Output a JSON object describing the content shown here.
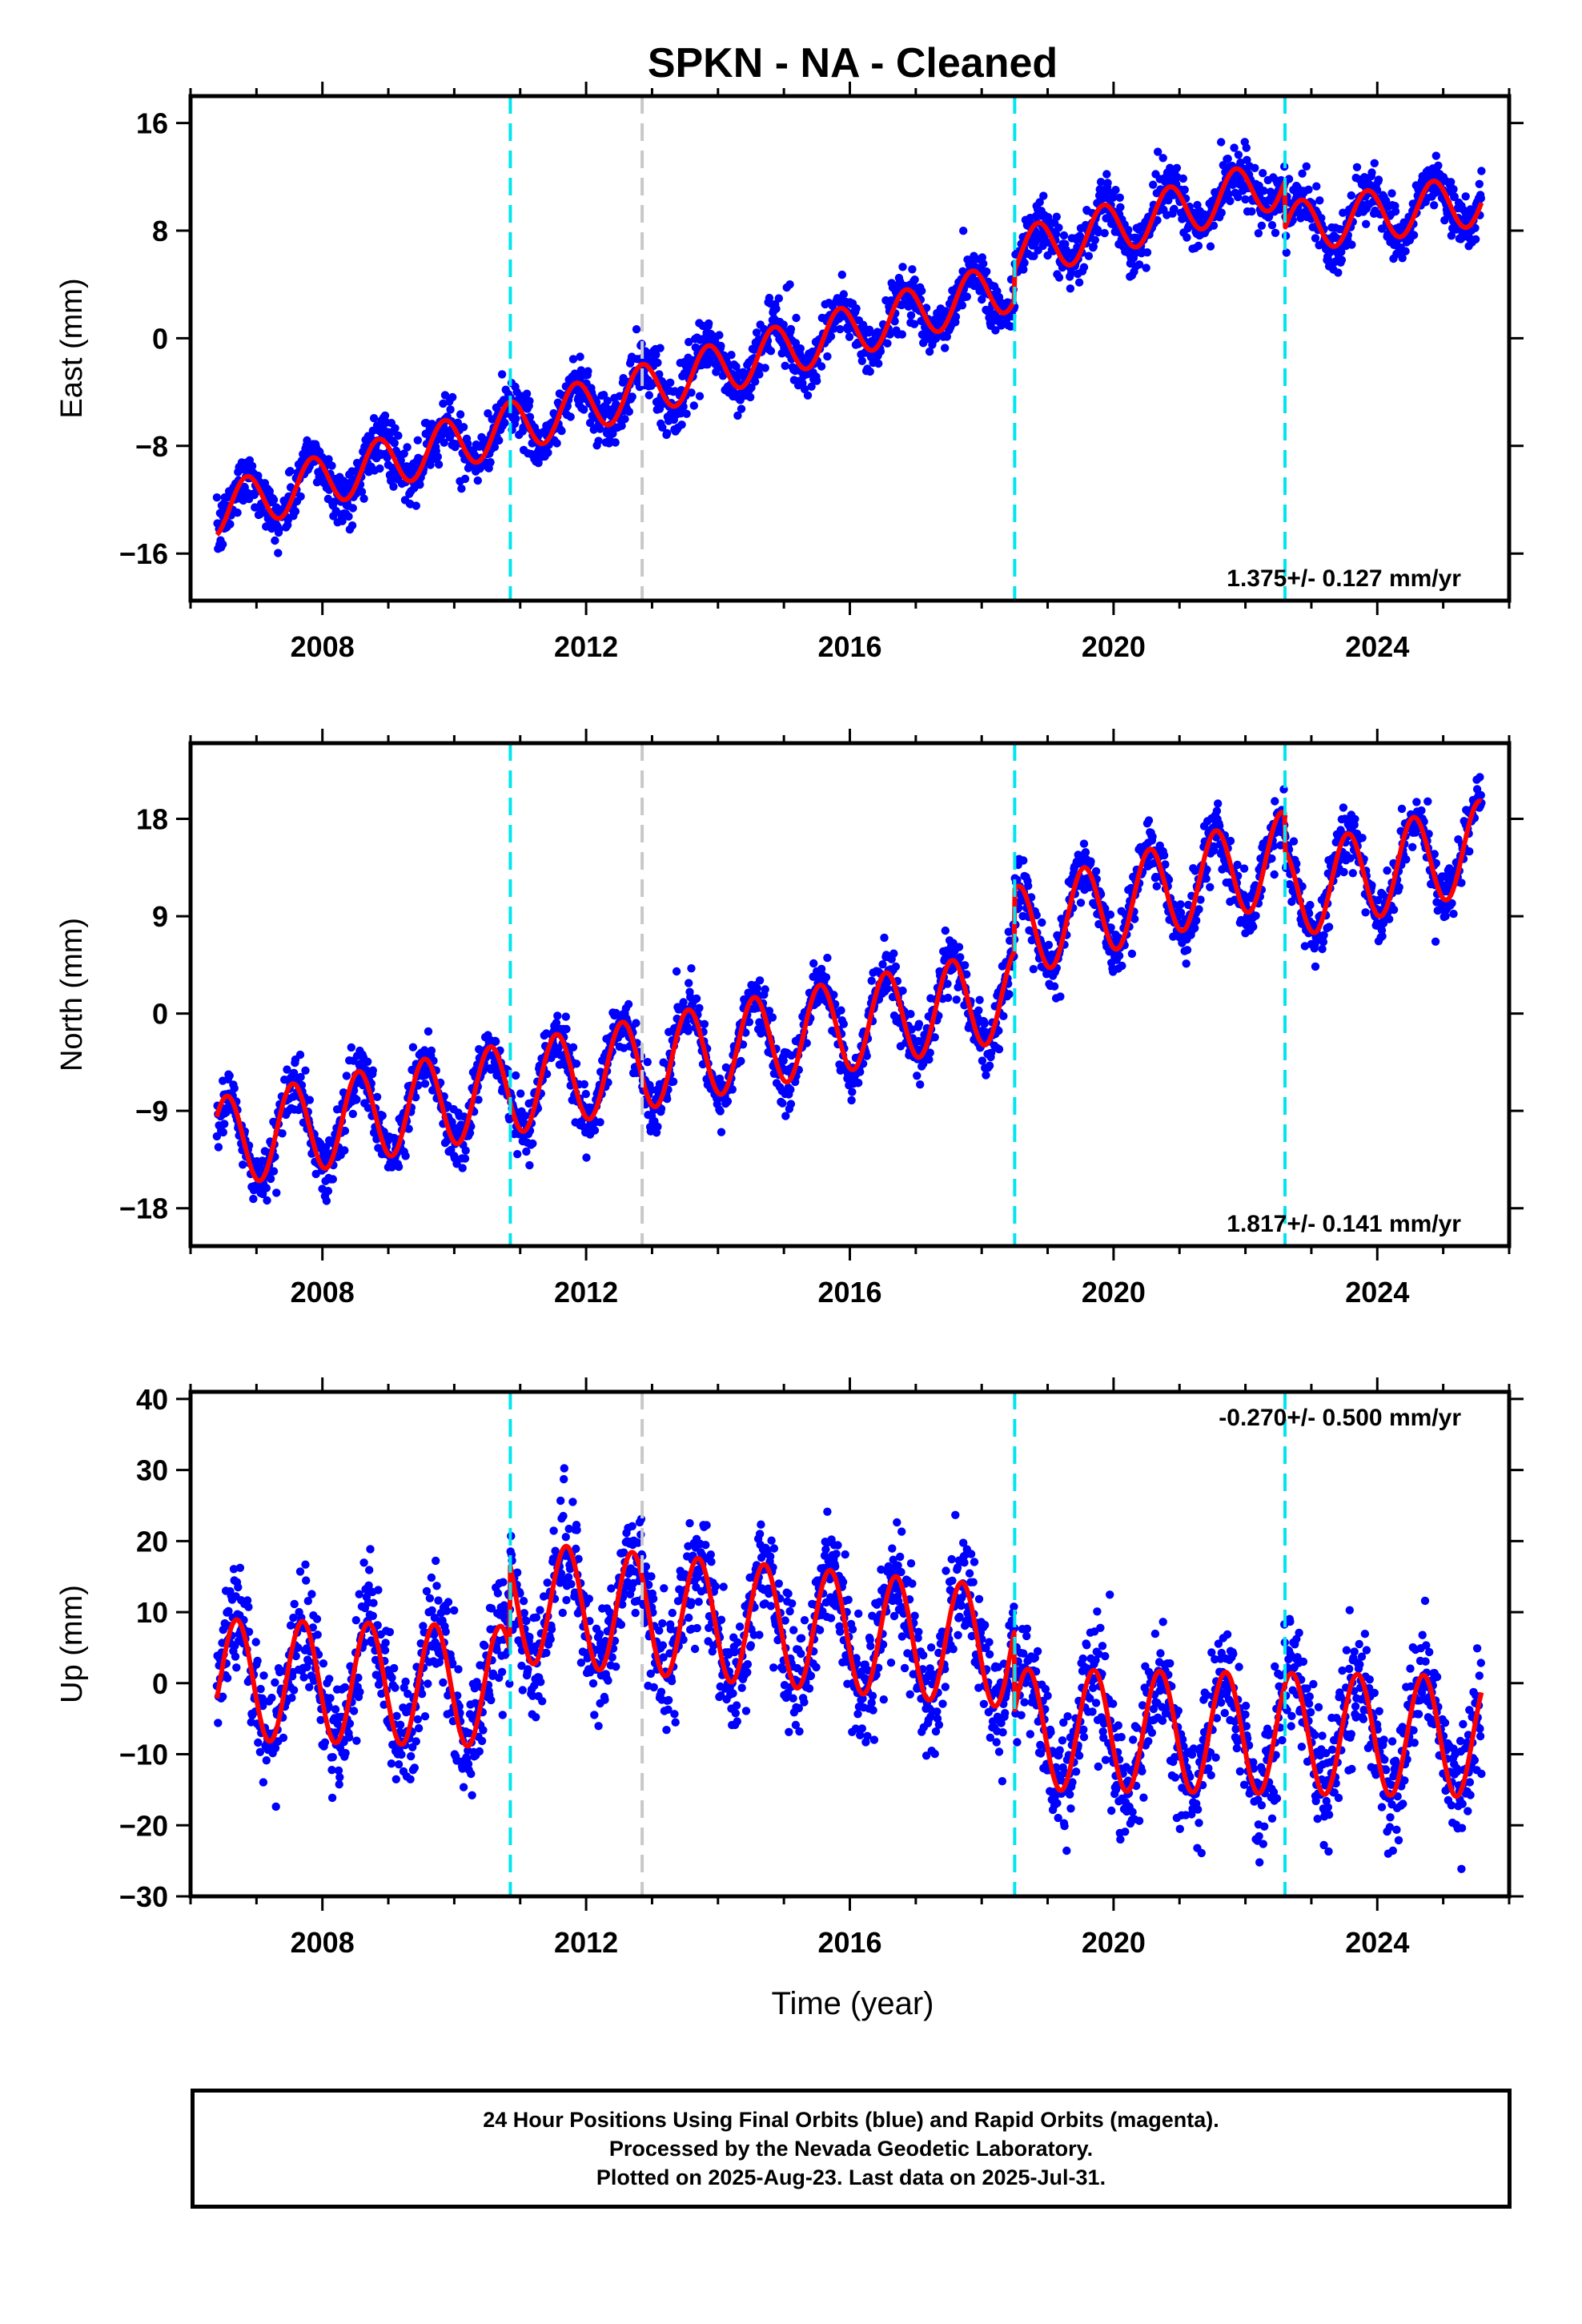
{
  "title": "SPKN  - NA - Cleaned",
  "xlabel": "Time (year)",
  "footer": {
    "line1": "24 Hour Positions Using Final Orbits (blue) and Rapid Orbits (magenta).",
    "line2": "Processed by the Nevada Geodetic Laboratory.",
    "line3": "Plotted on 2025-Aug-23. Last data on 2025-Jul-31."
  },
  "colors": {
    "data_points": "#0000ff",
    "model_fit": "#ff0000",
    "equipment_change": "#00e5ee",
    "other_event": "#c8c8c8"
  },
  "chart_data": [
    {
      "type": "scatter",
      "name": "east",
      "ylabel": "East (mm)",
      "rate": "1.375+/- 0.127 mm/yr",
      "rate_position": "bottom-right",
      "xlim": [
        2006.0,
        2026.0
      ],
      "ylim": [
        -19.5,
        18
      ],
      "xticks": [
        2008,
        2012,
        2016,
        2020,
        2024
      ],
      "yticks": [
        -16,
        -8,
        0,
        8,
        16
      ],
      "data_start": 2006.4,
      "data_end": 2025.58,
      "scatter_sigma": 1.0,
      "model": {
        "trend": [
          [
            2006.4,
            -12.8
          ],
          [
            2018.5,
            4.0
          ],
          [
            2018.5,
            6.2
          ],
          [
            2022.6,
            11.7
          ],
          [
            2022.6,
            8.2
          ],
          [
            2025.58,
            10.3
          ]
        ],
        "annual_amplitude": 1.9,
        "annual_peak_phase": 0.85
      },
      "offsets_cyan": [
        2010.85,
        2018.5,
        2022.6
      ],
      "offsets_gray": [
        2012.85
      ]
    },
    {
      "type": "scatter",
      "name": "north",
      "ylabel": "North (mm)",
      "rate": "1.817+/- 0.141 mm/yr",
      "rate_position": "bottom-right",
      "xlim": [
        2006.0,
        2026.0
      ],
      "ylim": [
        -21.5,
        25
      ],
      "xticks": [
        2008,
        2012,
        2016,
        2020,
        2024
      ],
      "yticks": [
        -18,
        -9,
        0,
        9,
        18
      ],
      "data_start": 2006.4,
      "data_end": 2025.58,
      "scatter_sigma": 1.3,
      "model": {
        "trend": [
          [
            2006.4,
            -12.0
          ],
          [
            2018.5,
            1.8
          ],
          [
            2018.5,
            7.5
          ],
          [
            2022.6,
            14.5
          ],
          [
            2022.6,
            11.0
          ],
          [
            2025.58,
            15.5
          ]
        ],
        "annual_amplitude": 4.2,
        "annual_peak_phase": 0.55
      },
      "offsets_cyan": [
        2010.85,
        2018.5,
        2022.6
      ],
      "offsets_gray": [
        2012.85
      ]
    },
    {
      "type": "scatter",
      "name": "up",
      "ylabel": "Up (mm)",
      "rate": "-0.270+/- 0.500 mm/yr",
      "rate_position": "top-right",
      "xlim": [
        2006.0,
        2026.0
      ],
      "ylim": [
        -30,
        41
      ],
      "xticks": [
        2008,
        2012,
        2016,
        2020,
        2024
      ],
      "yticks": [
        -30,
        -20,
        -10,
        0,
        10,
        20,
        30,
        40
      ],
      "data_start": 2006.4,
      "data_end": 2025.58,
      "scatter_sigma": 4.0,
      "model": {
        "trend": [
          [
            2006.4,
            0.5
          ],
          [
            2010.85,
            -0.5
          ],
          [
            2010.85,
            11.5
          ],
          [
            2018.5,
            5.0
          ],
          [
            2018.5,
            -6.5
          ],
          [
            2025.58,
            -7.5
          ]
        ],
        "annual_amplitude": 8.5,
        "annual_peak_phase": 0.7
      },
      "offsets_cyan": [
        2010.85,
        2018.5,
        2022.6
      ],
      "offsets_gray": [
        2012.85
      ]
    }
  ]
}
